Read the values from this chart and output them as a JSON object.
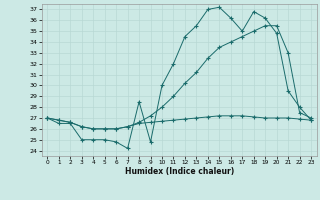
{
  "xlabel": "Humidex (Indice chaleur)",
  "xlim": [
    -0.5,
    23.5
  ],
  "ylim": [
    23.5,
    37.5
  ],
  "yticks": [
    24,
    25,
    26,
    27,
    28,
    29,
    30,
    31,
    32,
    33,
    34,
    35,
    36,
    37
  ],
  "xticks": [
    0,
    1,
    2,
    3,
    4,
    5,
    6,
    7,
    8,
    9,
    10,
    11,
    12,
    13,
    14,
    15,
    16,
    17,
    18,
    19,
    20,
    21,
    22,
    23
  ],
  "bg_color": "#cce9e5",
  "line_color": "#1a6b6b",
  "grid_color": "#b8d8d4",
  "line1_y": [
    27.0,
    26.5,
    26.5,
    25.0,
    25.0,
    25.0,
    24.8,
    24.2,
    28.5,
    24.8,
    30.0,
    32.0,
    34.5,
    35.5,
    37.0,
    37.2,
    36.2,
    35.0,
    36.8,
    36.2,
    34.8,
    29.5,
    28.0,
    26.8
  ],
  "line2_y": [
    27.0,
    26.8,
    26.6,
    26.2,
    26.0,
    26.0,
    26.0,
    26.2,
    26.6,
    27.2,
    28.0,
    29.0,
    30.2,
    31.2,
    32.5,
    33.5,
    34.0,
    34.5,
    35.0,
    35.5,
    35.5,
    33.0,
    27.5,
    27.0
  ],
  "line3_y": [
    27.0,
    26.8,
    26.6,
    26.2,
    26.0,
    26.0,
    26.0,
    26.2,
    26.5,
    26.6,
    26.7,
    26.8,
    26.9,
    27.0,
    27.1,
    27.2,
    27.2,
    27.2,
    27.1,
    27.0,
    27.0,
    27.0,
    26.9,
    26.8
  ]
}
